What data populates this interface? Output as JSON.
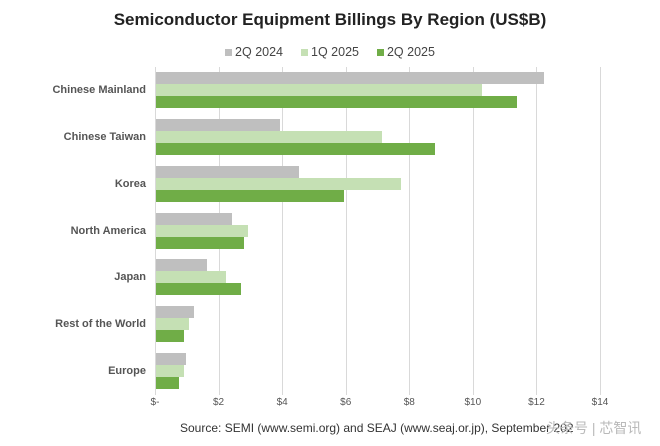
{
  "chart_data": {
    "type": "bar",
    "orientation": "horizontal",
    "title": "Semiconductor Equipment Billings By Region (US$B)",
    "xlabel": "",
    "ylabel": "",
    "xlim": [
      0,
      14
    ],
    "x_ticks": [
      "$-",
      "$2",
      "$4",
      "$6",
      "$8",
      "$10",
      "$12",
      "$14"
    ],
    "grid": true,
    "legend_position": "top",
    "categories": [
      "Chinese Mainland",
      "Chinese Taiwan",
      "Korea",
      "North America",
      "Japan",
      "Rest of the World",
      "Europe"
    ],
    "series": [
      {
        "name": "2Q 2024",
        "color": "#bfbfbf",
        "values": [
          12.2,
          3.9,
          4.5,
          2.4,
          1.6,
          1.2,
          0.95
        ]
      },
      {
        "name": "1Q 2025",
        "color": "#c5e0b4",
        "values": [
          10.25,
          7.1,
          7.7,
          2.9,
          2.2,
          1.05,
          0.87
        ]
      },
      {
        "name": "2Q 2025",
        "color": "#70ad47",
        "values": [
          11.36,
          8.77,
          5.91,
          2.76,
          2.68,
          0.87,
          0.72
        ]
      }
    ],
    "source": "Source: SEMI (www.semi.org) and SEAJ (www.seaj.or.jp), September 2025"
  },
  "title": "Semiconductor Equipment Billings By Region (US$B)",
  "legend": [
    "2Q 2024",
    "1Q 2025",
    "2Q 2025"
  ],
  "source_text": "Source: SEMI (www.semi.org) and SEAJ (www.seaj.or.jp), September 202",
  "watermark": "头条号 | 芯智讯"
}
